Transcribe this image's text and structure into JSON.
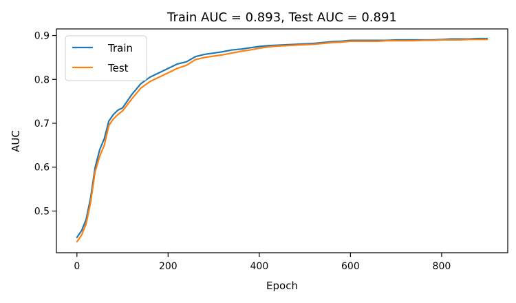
{
  "chart_data": {
    "type": "line",
    "title": "Train AUC = 0.893, Test AUC = 0.891",
    "xlabel": "Epoch",
    "ylabel": "AUC",
    "xlim": [
      -45,
      945
    ],
    "ylim": [
      0.405,
      0.915
    ],
    "xticks": [
      0,
      200,
      400,
      600,
      800
    ],
    "yticks": [
      0.5,
      0.6,
      0.7,
      0.8,
      0.9
    ],
    "grid": false,
    "legend": "top-left",
    "series": [
      {
        "name": "Train",
        "color": "#1f77b4",
        "x": [
          0,
          10,
          20,
          30,
          40,
          50,
          60,
          70,
          80,
          90,
          100,
          120,
          140,
          160,
          180,
          200,
          220,
          240,
          260,
          280,
          300,
          320,
          340,
          360,
          380,
          400,
          420,
          440,
          460,
          480,
          500,
          520,
          540,
          560,
          580,
          600,
          620,
          640,
          660,
          680,
          700,
          720,
          740,
          760,
          780,
          800,
          820,
          840,
          860,
          880,
          900
        ],
        "values": [
          0.44,
          0.455,
          0.48,
          0.53,
          0.6,
          0.64,
          0.665,
          0.705,
          0.72,
          0.73,
          0.735,
          0.765,
          0.79,
          0.805,
          0.815,
          0.825,
          0.835,
          0.84,
          0.852,
          0.857,
          0.86,
          0.863,
          0.867,
          0.869,
          0.872,
          0.875,
          0.877,
          0.878,
          0.879,
          0.88,
          0.881,
          0.882,
          0.884,
          0.886,
          0.887,
          0.889,
          0.889,
          0.889,
          0.889,
          0.889,
          0.89,
          0.89,
          0.89,
          0.89,
          0.89,
          0.891,
          0.892,
          0.892,
          0.892,
          0.893,
          0.893
        ]
      },
      {
        "name": "Test",
        "color": "#ff7f0e",
        "x": [
          0,
          10,
          20,
          30,
          40,
          50,
          60,
          70,
          80,
          90,
          100,
          120,
          140,
          160,
          180,
          200,
          220,
          240,
          260,
          280,
          300,
          320,
          340,
          360,
          380,
          400,
          420,
          440,
          460,
          480,
          500,
          520,
          540,
          560,
          580,
          600,
          620,
          640,
          660,
          680,
          700,
          720,
          740,
          760,
          780,
          800,
          820,
          840,
          860,
          880,
          900
        ],
        "values": [
          0.43,
          0.445,
          0.47,
          0.52,
          0.59,
          0.625,
          0.65,
          0.695,
          0.71,
          0.72,
          0.728,
          0.755,
          0.78,
          0.795,
          0.805,
          0.815,
          0.825,
          0.832,
          0.845,
          0.85,
          0.853,
          0.856,
          0.86,
          0.864,
          0.867,
          0.871,
          0.874,
          0.876,
          0.877,
          0.878,
          0.879,
          0.88,
          0.882,
          0.884,
          0.885,
          0.887,
          0.887,
          0.887,
          0.887,
          0.888,
          0.888,
          0.888,
          0.888,
          0.889,
          0.889,
          0.89,
          0.89,
          0.89,
          0.891,
          0.891,
          0.891
        ]
      }
    ]
  }
}
